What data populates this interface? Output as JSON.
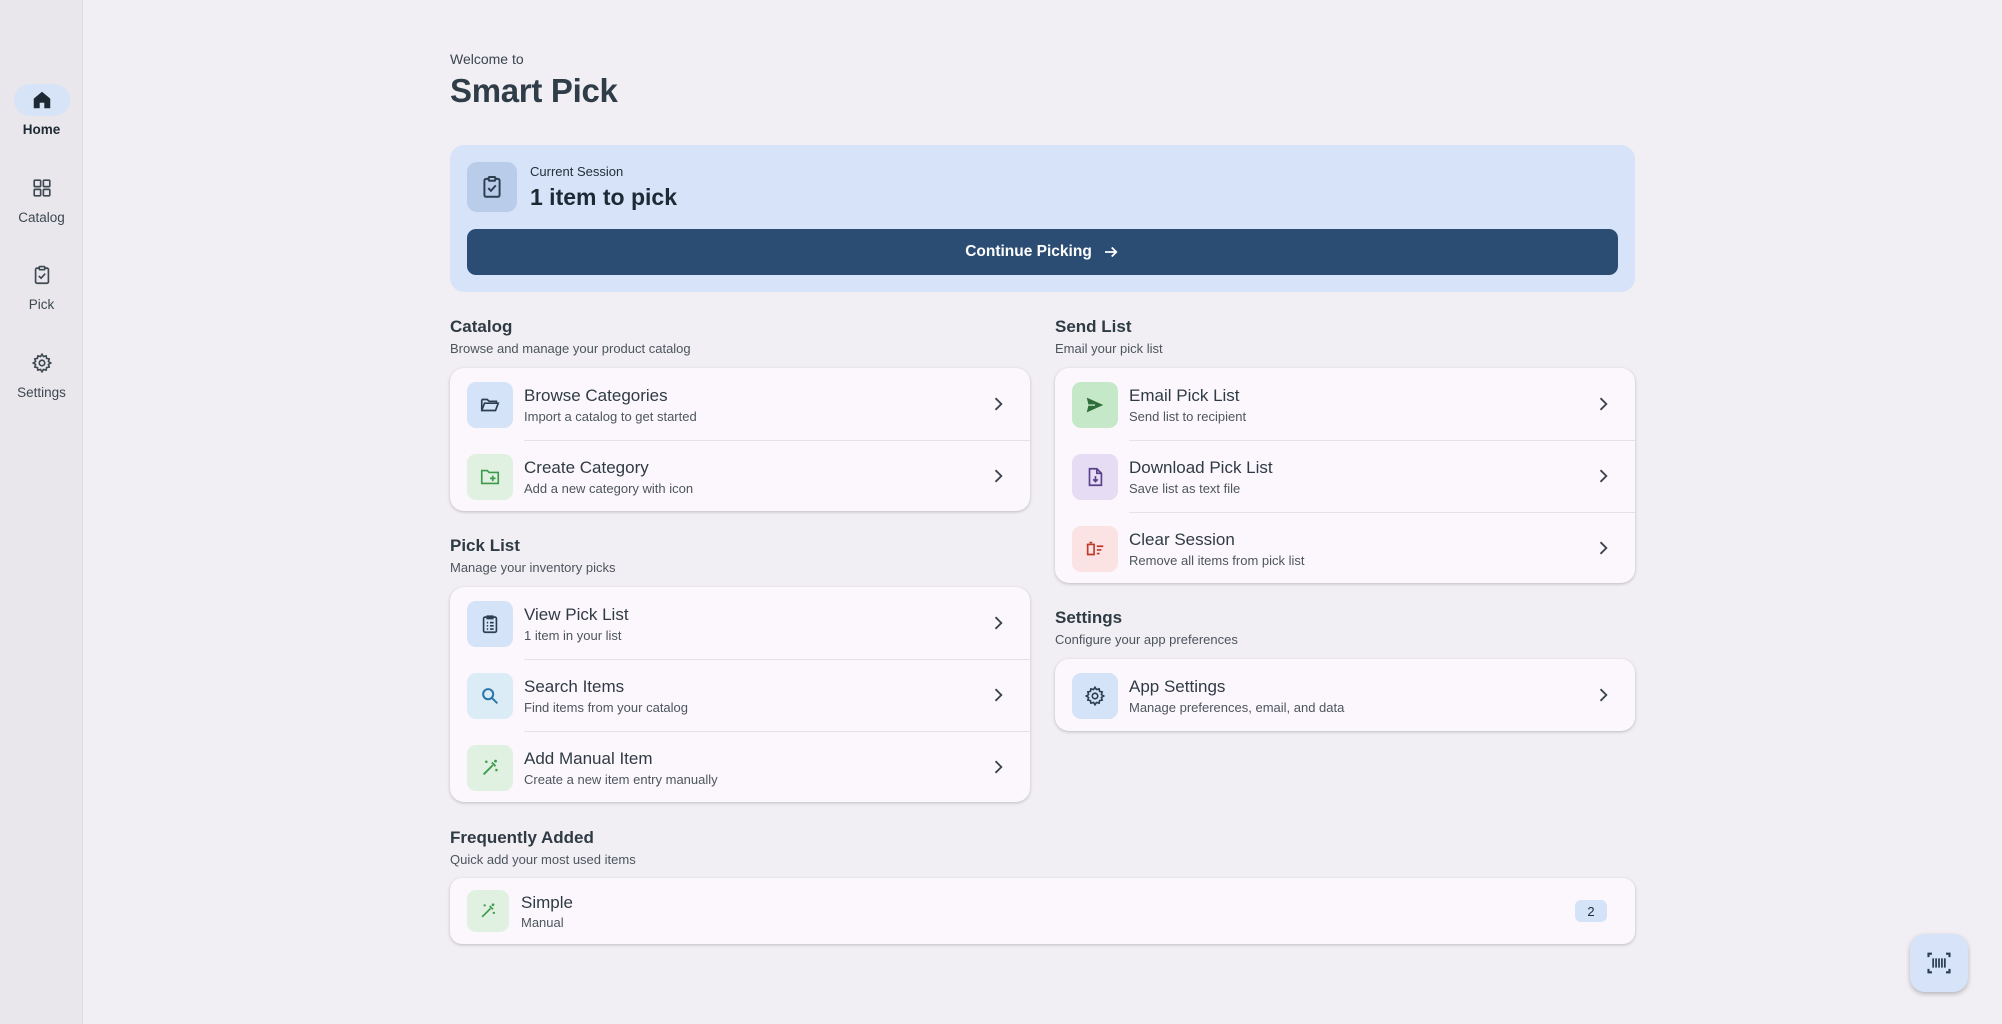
{
  "nav": {
    "items": [
      {
        "label": "Home",
        "icon": "home-icon",
        "active": true
      },
      {
        "label": "Catalog",
        "icon": "grid-icon",
        "active": false
      },
      {
        "label": "Pick",
        "icon": "clipboard-check-icon",
        "active": false
      },
      {
        "label": "Settings",
        "icon": "gear-icon",
        "active": false
      }
    ]
  },
  "header": {
    "welcome": "Welcome to",
    "title": "Smart Pick"
  },
  "session": {
    "label": "Current Session",
    "count_text": "1 item to pick",
    "button_label": "Continue Picking"
  },
  "catalog": {
    "title": "Catalog",
    "subtitle": "Browse and manage your product catalog",
    "rows": [
      {
        "title": "Browse Categories",
        "subtitle": "Import a catalog to get started",
        "icon": "folder-open-icon"
      },
      {
        "title": "Create Category",
        "subtitle": "Add a new category with icon",
        "icon": "folder-plus-icon"
      }
    ]
  },
  "pick_list": {
    "title": "Pick List",
    "subtitle": "Manage your inventory picks",
    "rows": [
      {
        "title": "View Pick List",
        "subtitle": "1 item in your list",
        "icon": "list-clipboard-icon"
      },
      {
        "title": "Search Items",
        "subtitle": "Find items from your catalog",
        "icon": "search-icon"
      },
      {
        "title": "Add Manual Item",
        "subtitle": "Create a new item entry manually",
        "icon": "magic-wand-icon"
      }
    ]
  },
  "send_list": {
    "title": "Send List",
    "subtitle": "Email your pick list",
    "rows": [
      {
        "title": "Email Pick List",
        "subtitle": "Send list to recipient",
        "icon": "send-icon"
      },
      {
        "title": "Download Pick List",
        "subtitle": "Save list as text file",
        "icon": "file-download-icon"
      },
      {
        "title": "Clear Session",
        "subtitle": "Remove all items from pick list",
        "icon": "delete-sweep-icon"
      }
    ]
  },
  "settings": {
    "title": "Settings",
    "subtitle": "Configure your app preferences",
    "rows": [
      {
        "title": "App Settings",
        "subtitle": "Manage preferences, email, and data",
        "icon": "gear-icon"
      }
    ]
  },
  "frequent": {
    "title": "Frequently Added",
    "subtitle": "Quick add your most used items",
    "items": [
      {
        "title": "Simple",
        "subtitle": "Manual",
        "count": "2",
        "icon": "magic-wand-icon"
      }
    ]
  },
  "fab": {
    "icon": "barcode-scan-icon"
  },
  "colors": {
    "primary": "#2b4d74",
    "session_bg": "#d6e3f9",
    "background": "#f1eff4",
    "card_bg": "#fcf7fc"
  }
}
